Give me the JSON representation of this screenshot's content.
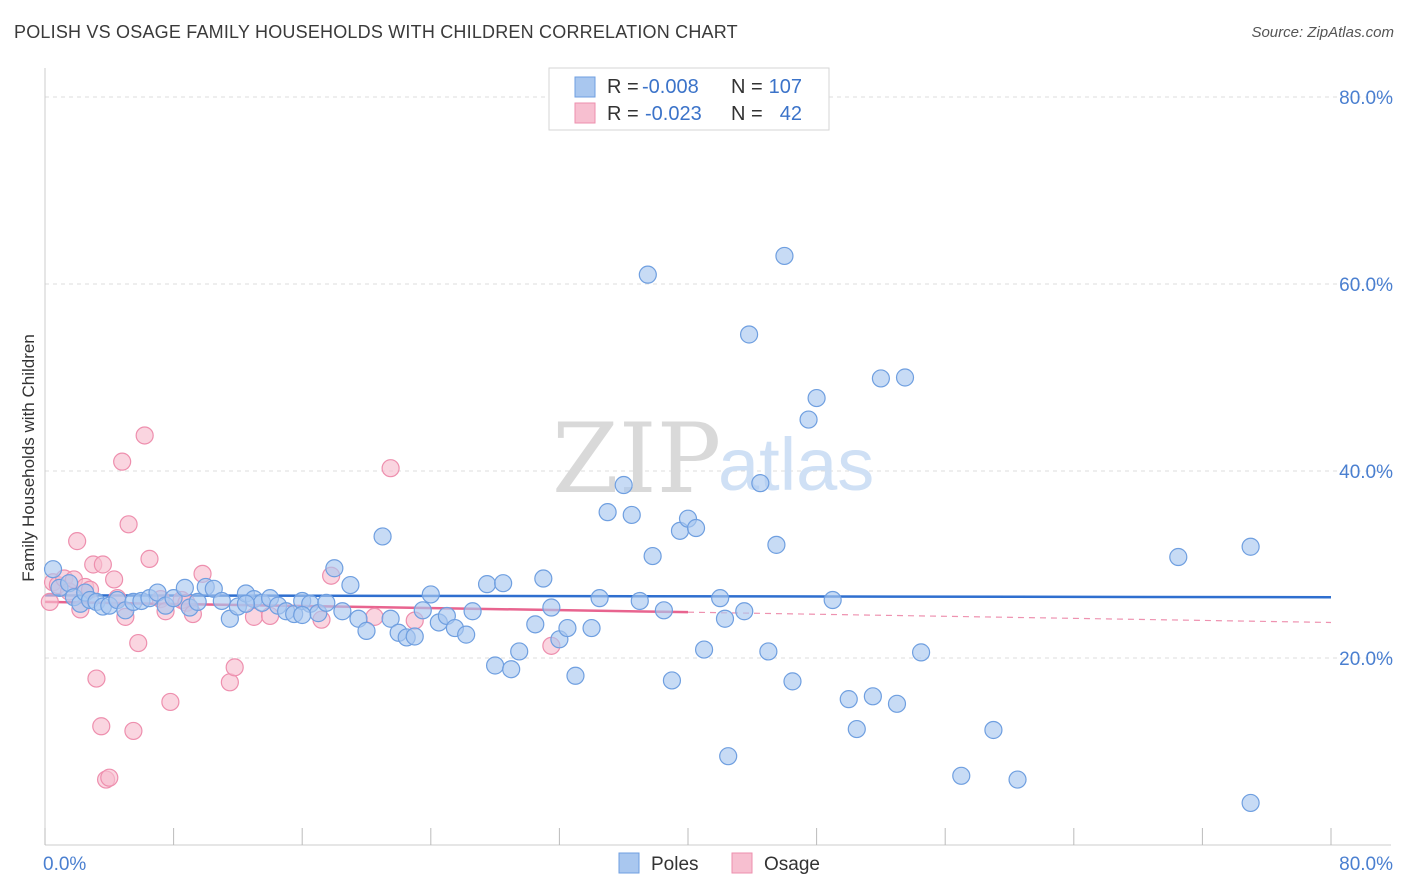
{
  "title": "POLISH VS OSAGE FAMILY HOUSEHOLDS WITH CHILDREN CORRELATION CHART",
  "source": "Source: ZipAtlas.com",
  "watermark": {
    "zip": "ZIP",
    "atlas": "atlas"
  },
  "colors": {
    "poles_fill": "#a9c7ef",
    "poles_stroke": "#6f9fe0",
    "poles_line": "#2f6fcf",
    "osage_fill": "#f7bfd0",
    "osage_stroke": "#ee8fae",
    "osage_line": "#e8648f",
    "axis_text": "#4a7fd0",
    "grid": "#dddddd"
  },
  "legend": {
    "rows": [
      {
        "r_label": "R =",
        "r_value": "-0.008",
        "n_label": "N =",
        "n_value": "107"
      },
      {
        "r_label": "R =",
        "r_value": "-0.023",
        "n_label": "N =",
        "n_value": "42"
      }
    ]
  },
  "bottom_legend": [
    "Poles",
    "Osage"
  ],
  "chart_data": {
    "type": "scatter",
    "ylabel": "Family Households with Children",
    "xlim": [
      0,
      80
    ],
    "ylim": [
      0,
      80
    ],
    "x_tick_labels": [
      {
        "value": 0,
        "label": "0.0%"
      },
      {
        "value": 80,
        "label": "80.0%"
      }
    ],
    "y_ticks": [
      {
        "value": 20,
        "label": "20.0%"
      },
      {
        "value": 40,
        "label": "40.0%"
      },
      {
        "value": 60,
        "label": "60.0%"
      },
      {
        "value": 80,
        "label": "80.0%"
      }
    ],
    "series": [
      {
        "name": "Poles",
        "trend": {
          "x": [
            0,
            80
          ],
          "y": [
            26.7,
            26.5
          ]
        },
        "points": [
          [
            0.5,
            29.5
          ],
          [
            0.9,
            27.5
          ],
          [
            1.5,
            28.0
          ],
          [
            1.8,
            26.5
          ],
          [
            2.2,
            25.8
          ],
          [
            2.5,
            27.0
          ],
          [
            2.8,
            26.2
          ],
          [
            3.2,
            26.0
          ],
          [
            3.6,
            25.5
          ],
          [
            4.0,
            25.6
          ],
          [
            4.5,
            26.2
          ],
          [
            5.0,
            25.1
          ],
          [
            5.5,
            26.0
          ],
          [
            6.0,
            26.1
          ],
          [
            6.5,
            26.4
          ],
          [
            7.0,
            27.0
          ],
          [
            7.5,
            25.6
          ],
          [
            8.0,
            26.4
          ],
          [
            8.7,
            27.5
          ],
          [
            9.0,
            25.4
          ],
          [
            9.5,
            26.0
          ],
          [
            10.0,
            27.6
          ],
          [
            10.5,
            27.4
          ],
          [
            11.0,
            26.1
          ],
          [
            11.5,
            24.2
          ],
          [
            12.0,
            25.5
          ],
          [
            12.5,
            26.9
          ],
          [
            13.0,
            26.3
          ],
          [
            13.5,
            25.9
          ],
          [
            14.0,
            26.4
          ],
          [
            14.5,
            25.6
          ],
          [
            15.0,
            25.0
          ],
          [
            15.5,
            24.7
          ],
          [
            16.0,
            26.1
          ],
          [
            16.5,
            25.8
          ],
          [
            17.0,
            24.8
          ],
          [
            17.5,
            25.9
          ],
          [
            18.0,
            29.6
          ],
          [
            18.5,
            25.0
          ],
          [
            19.0,
            27.8
          ],
          [
            19.5,
            24.2
          ],
          [
            20.0,
            22.9
          ],
          [
            21.0,
            33.0
          ],
          [
            21.5,
            24.2
          ],
          [
            22.0,
            22.7
          ],
          [
            22.5,
            22.2
          ],
          [
            23.0,
            22.3
          ],
          [
            23.5,
            25.1
          ],
          [
            24.0,
            26.8
          ],
          [
            24.5,
            23.8
          ],
          [
            25.0,
            24.5
          ],
          [
            25.5,
            23.2
          ],
          [
            26.2,
            22.5
          ],
          [
            26.6,
            25.0
          ],
          [
            27.5,
            27.9
          ],
          [
            28.0,
            19.2
          ],
          [
            28.5,
            28.0
          ],
          [
            29.0,
            18.8
          ],
          [
            29.5,
            20.7
          ],
          [
            30.5,
            23.6
          ],
          [
            31.0,
            28.5
          ],
          [
            31.5,
            25.4
          ],
          [
            32.0,
            22.0
          ],
          [
            32.5,
            23.2
          ],
          [
            33.0,
            18.1
          ],
          [
            34.0,
            23.2
          ],
          [
            34.5,
            26.4
          ],
          [
            35.0,
            35.6
          ],
          [
            36.0,
            38.5
          ],
          [
            36.5,
            35.3
          ],
          [
            37.0,
            26.1
          ],
          [
            37.5,
            61.0
          ],
          [
            37.8,
            30.9
          ],
          [
            38.5,
            25.1
          ],
          [
            39.0,
            17.6
          ],
          [
            39.5,
            33.6
          ],
          [
            40.0,
            34.9
          ],
          [
            40.5,
            33.9
          ],
          [
            41.0,
            20.9
          ],
          [
            42.0,
            26.4
          ],
          [
            42.3,
            24.2
          ],
          [
            42.5,
            9.5
          ],
          [
            43.5,
            25.0
          ],
          [
            43.8,
            54.6
          ],
          [
            44.5,
            38.7
          ],
          [
            45.0,
            20.7
          ],
          [
            45.5,
            32.1
          ],
          [
            46.0,
            63.0
          ],
          [
            46.5,
            17.5
          ],
          [
            47.5,
            45.5
          ],
          [
            48.0,
            47.8
          ],
          [
            49.0,
            26.2
          ],
          [
            50.0,
            15.6
          ],
          [
            50.5,
            12.4
          ],
          [
            51.5,
            15.9
          ],
          [
            52.0,
            49.9
          ],
          [
            53.0,
            15.1
          ],
          [
            53.5,
            50.0
          ],
          [
            54.5,
            20.6
          ],
          [
            57.0,
            7.4
          ],
          [
            59.0,
            12.3
          ],
          [
            60.5,
            7.0
          ],
          [
            70.5,
            30.8
          ],
          [
            75.0,
            31.9
          ],
          [
            75.0,
            4.5
          ],
          [
            16.0,
            24.6
          ],
          [
            12.5,
            25.8
          ]
        ]
      },
      {
        "name": "Osage",
        "trend": {
          "x": [
            0,
            40
          ],
          "y": [
            26.0,
            24.9
          ]
        },
        "points": [
          [
            0.3,
            26.0
          ],
          [
            0.5,
            28.1
          ],
          [
            0.8,
            27.8
          ],
          [
            1.2,
            28.5
          ],
          [
            1.5,
            27.1
          ],
          [
            1.8,
            28.4
          ],
          [
            2.0,
            32.5
          ],
          [
            2.2,
            25.2
          ],
          [
            2.5,
            27.6
          ],
          [
            2.8,
            27.3
          ],
          [
            3.0,
            30.0
          ],
          [
            3.2,
            17.8
          ],
          [
            3.5,
            12.7
          ],
          [
            3.6,
            30.0
          ],
          [
            3.8,
            7.0
          ],
          [
            4.0,
            7.2
          ],
          [
            4.3,
            28.4
          ],
          [
            4.5,
            26.4
          ],
          [
            4.8,
            41.0
          ],
          [
            5.0,
            24.4
          ],
          [
            5.2,
            34.3
          ],
          [
            5.5,
            12.2
          ],
          [
            5.8,
            21.6
          ],
          [
            6.2,
            43.8
          ],
          [
            6.5,
            30.6
          ],
          [
            7.2,
            26.3
          ],
          [
            7.5,
            25.0
          ],
          [
            7.8,
            15.3
          ],
          [
            8.5,
            26.2
          ],
          [
            8.8,
            25.9
          ],
          [
            9.2,
            24.7
          ],
          [
            9.8,
            29.0
          ],
          [
            11.5,
            17.4
          ],
          [
            11.8,
            19.0
          ],
          [
            13.0,
            24.4
          ],
          [
            14.0,
            24.5
          ],
          [
            17.2,
            24.1
          ],
          [
            17.8,
            28.8
          ],
          [
            20.5,
            24.4
          ],
          [
            21.5,
            40.3
          ],
          [
            23.0,
            24.0
          ],
          [
            31.5,
            21.3
          ]
        ]
      }
    ]
  }
}
